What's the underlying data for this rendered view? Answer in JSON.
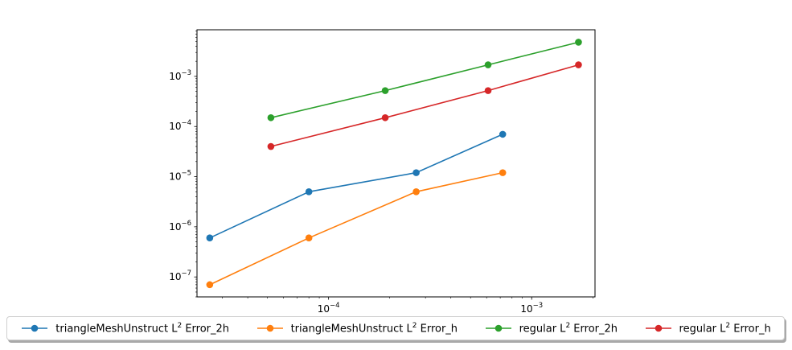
{
  "chart_data": {
    "type": "line",
    "title": "",
    "xlabel": "",
    "ylabel": "",
    "xscale": "log",
    "yscale": "log",
    "xlim": [
      2.25e-05,
      0.00205
    ],
    "ylim": [
      4e-08,
      0.0085
    ],
    "x_ticks": [
      {
        "value": 0.0001,
        "base": "10",
        "exp": "−4"
      },
      {
        "value": 0.001,
        "base": "10",
        "exp": "−3"
      }
    ],
    "y_ticks": [
      {
        "value": 1e-07,
        "base": "10",
        "exp": "−7"
      },
      {
        "value": 1e-06,
        "base": "10",
        "exp": "−6"
      },
      {
        "value": 1e-05,
        "base": "10",
        "exp": "−5"
      },
      {
        "value": 0.0001,
        "base": "10",
        "exp": "−4"
      },
      {
        "value": 0.001,
        "base": "10",
        "exp": "−3"
      }
    ],
    "legend_position": "bottom, below plot",
    "series": [
      {
        "name": "triangleMeshUnstruct L^2 Error_2h",
        "label_prefix": "triangleMeshUnstruct L",
        "label_sup": "2",
        "label_suffix": " Error_2h",
        "color": "#1f77b4",
        "x": [
          2.6e-05,
          8e-05,
          0.00027,
          0.00072
        ],
        "y": [
          6e-07,
          5e-06,
          1.2e-05,
          7e-05
        ]
      },
      {
        "name": "triangleMeshUnstruct L^2 Error_h",
        "label_prefix": "triangleMeshUnstruct L",
        "label_sup": "2",
        "label_suffix": " Error_h",
        "color": "#ff7f0e",
        "x": [
          2.6e-05,
          8e-05,
          0.00027,
          0.00072
        ],
        "y": [
          7e-08,
          6e-07,
          5e-06,
          1.2e-05
        ]
      },
      {
        "name": "regular L^2 Error_2h",
        "label_prefix": "regular L",
        "label_sup": "2",
        "label_suffix": " Error_2h",
        "color": "#2ca02c",
        "x": [
          5.2e-05,
          0.00019,
          0.00061,
          0.0017
        ],
        "y": [
          0.00015,
          0.00052,
          0.0017,
          0.0048
        ]
      },
      {
        "name": "regular L^2 Error_h",
        "label_prefix": "regular L",
        "label_sup": "2",
        "label_suffix": " Error_h",
        "color": "#d62728",
        "x": [
          5.2e-05,
          0.00019,
          0.00061,
          0.0017
        ],
        "y": [
          4e-05,
          0.00015,
          0.00052,
          0.0017
        ]
      }
    ]
  }
}
